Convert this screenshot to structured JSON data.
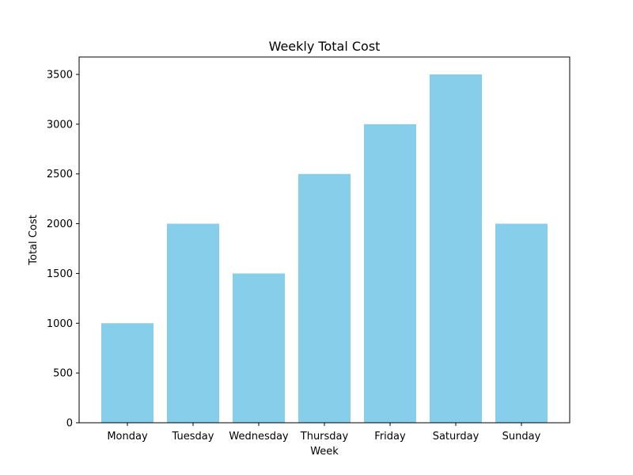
{
  "chart_data": {
    "type": "bar",
    "title": "Weekly Total Cost",
    "xlabel": "Week",
    "ylabel": "Total Cost",
    "categories": [
      "Monday",
      "Tuesday",
      "Wednesday",
      "Thursday",
      "Friday",
      "Saturday",
      "Sunday"
    ],
    "values": [
      1000,
      2000,
      1500,
      2500,
      3000,
      3500,
      2000
    ],
    "ylim": [
      0,
      3675
    ],
    "yticks": [
      0,
      500,
      1000,
      1500,
      2000,
      2500,
      3000,
      3500
    ],
    "ytick_labels": [
      "0",
      "500",
      "1000",
      "1500",
      "2000",
      "2500",
      "3000",
      "3500"
    ],
    "bar_color": "#87ceeb",
    "grid": false,
    "legend": "none"
  }
}
